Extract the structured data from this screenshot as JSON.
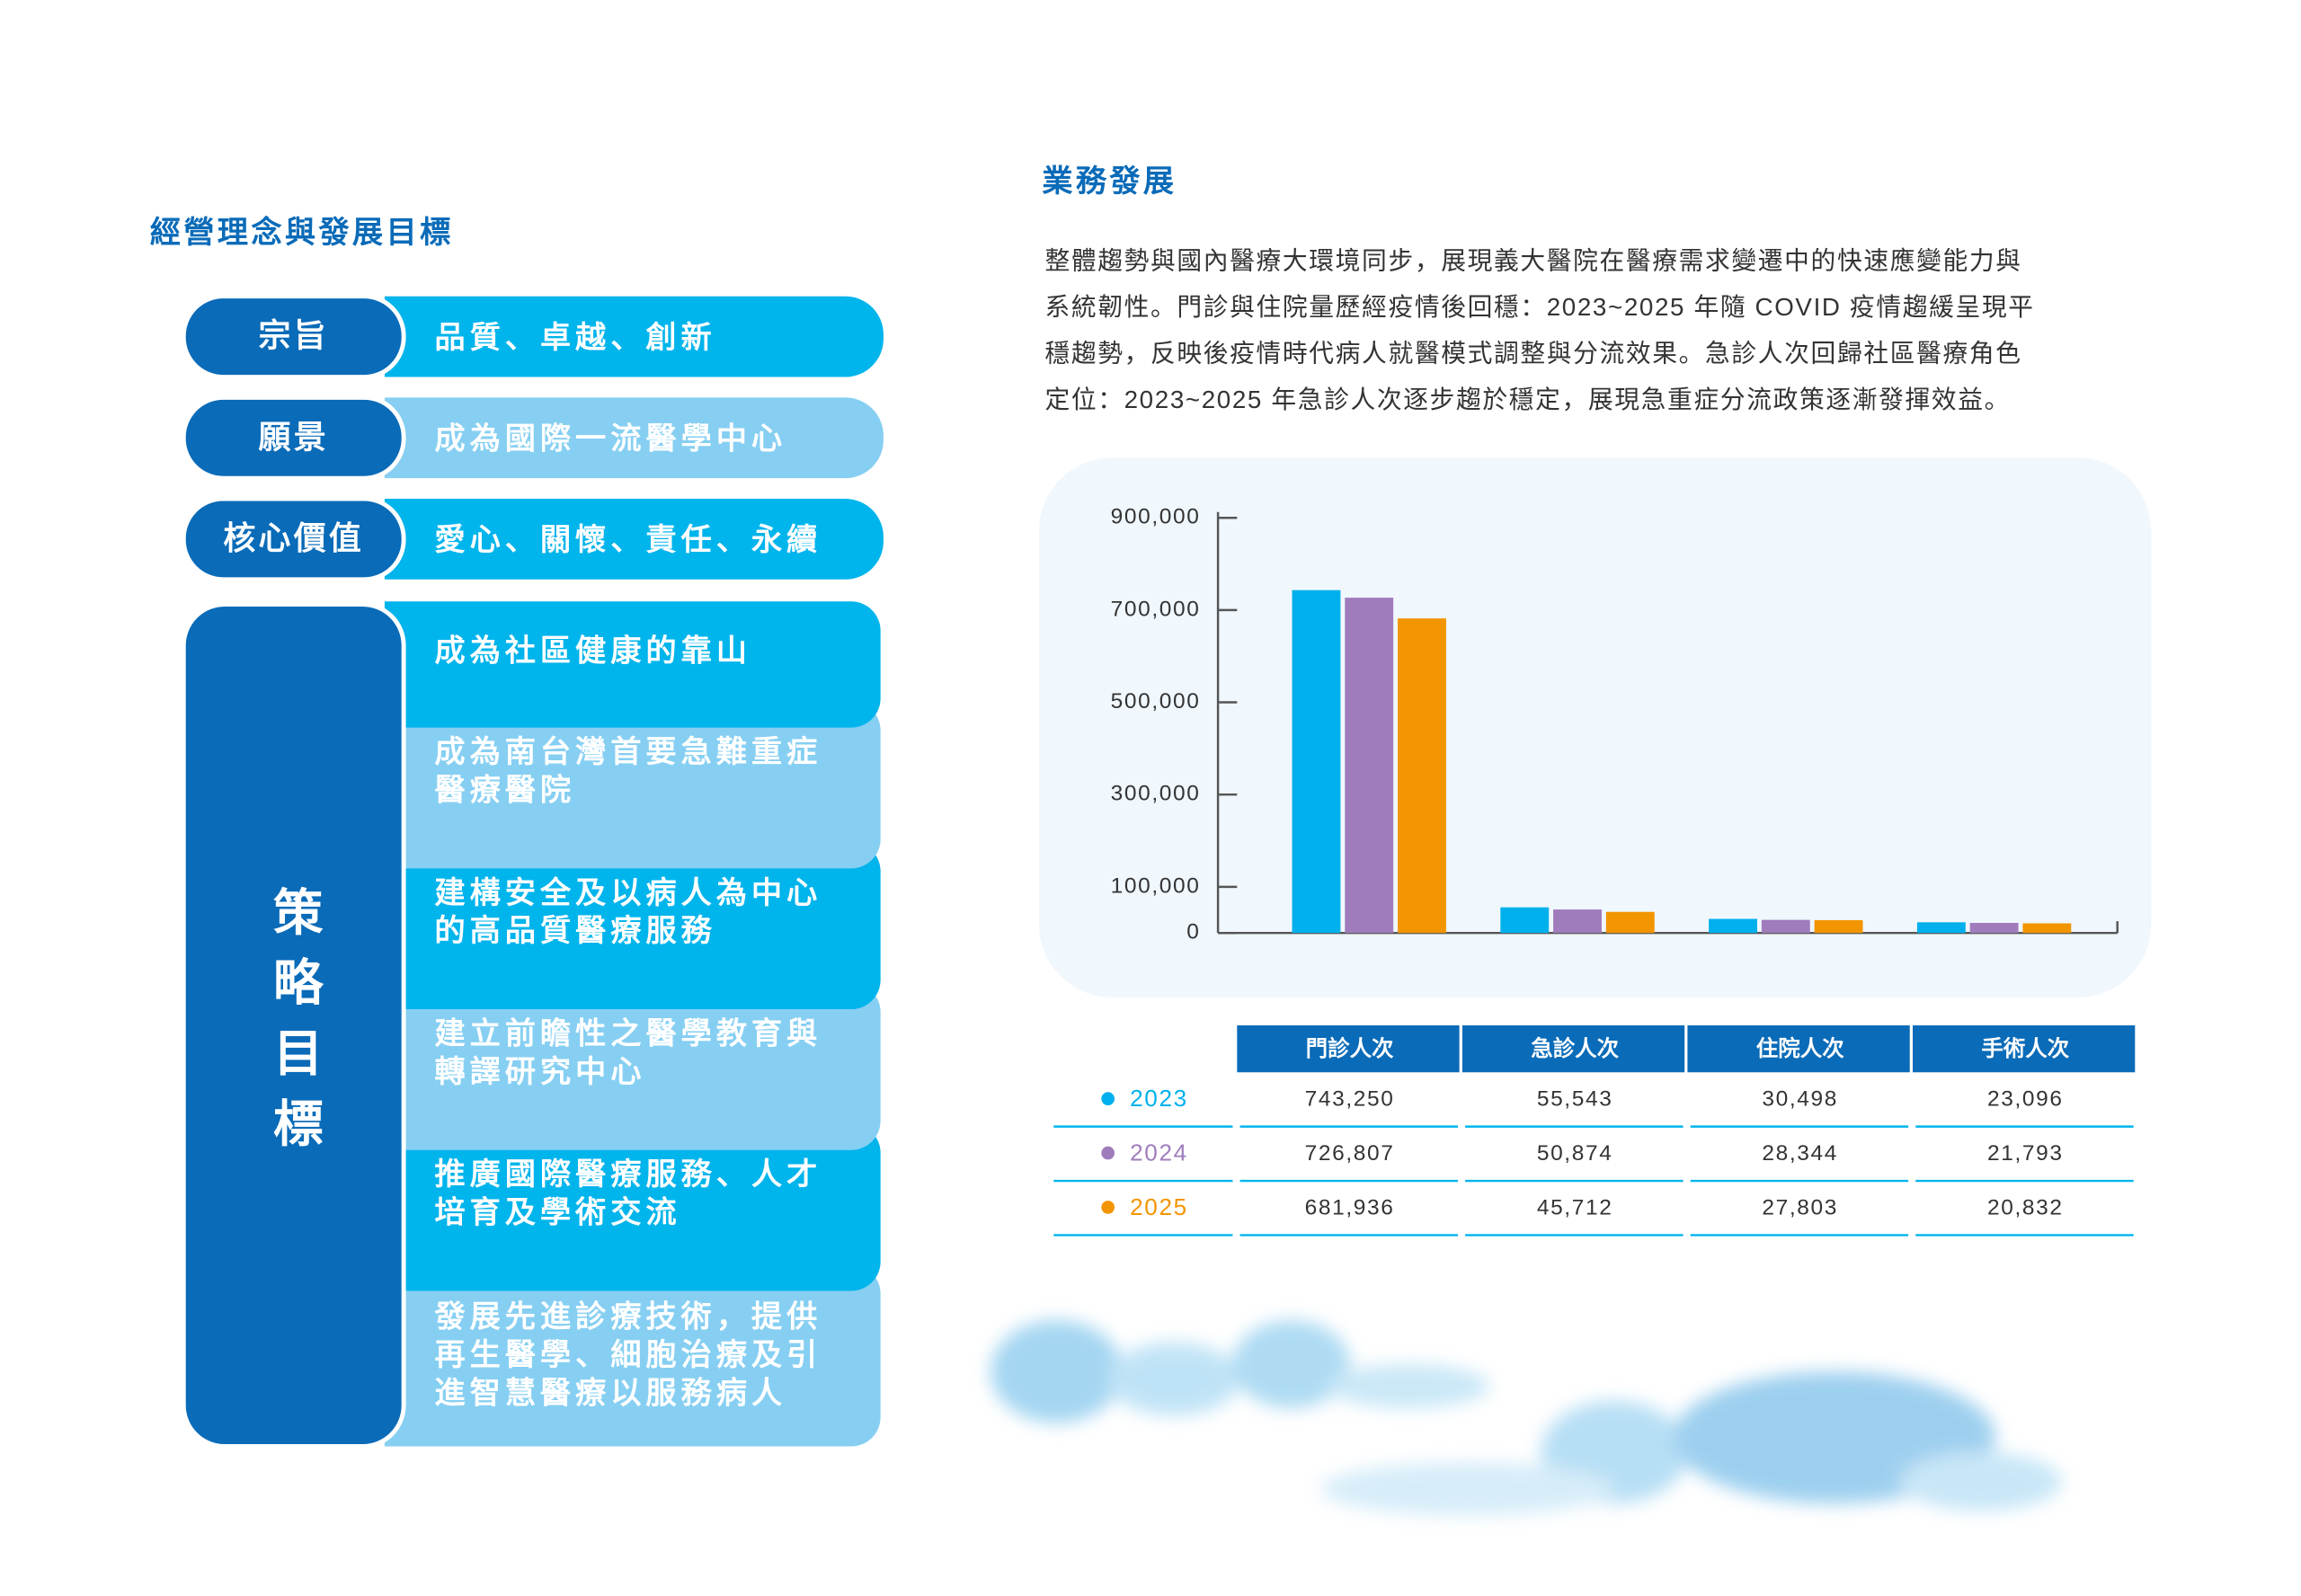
{
  "left": {
    "title": "經營理念與發展目標",
    "rows": [
      {
        "label": "宗旨",
        "text": "品質、卓越、創新"
      },
      {
        "label": "願景",
        "text": "成為國際一流醫學中心"
      },
      {
        "label": "核心價值",
        "text": "愛心、關懷、責任、永續"
      }
    ],
    "goals": {
      "label": "策略目標",
      "items": [
        {
          "lines": [
            "成為社區健康的靠山"
          ]
        },
        {
          "lines": [
            "成為南台灣首要急難重症",
            "醫療醫院"
          ]
        },
        {
          "lines": [
            "建構安全及以病人為中心",
            "的高品質醫療服務"
          ]
        },
        {
          "lines": [
            "建立前瞻性之醫學教育與",
            "轉譯研究中心"
          ]
        },
        {
          "lines": [
            "推廣國際醫療服務、人才",
            "培育及學術交流"
          ]
        },
        {
          "lines": [
            "發展先進診療技術，提供",
            "再生醫學、細胞治療及引",
            "進智慧醫療以服務病人"
          ]
        }
      ]
    }
  },
  "right": {
    "title": "業務發展",
    "paragraph": [
      "整體趨勢與國內醫療大環境同步，展現義大醫院在醫療需求變遷中的快速應變能力與",
      "系統韌性。門診與住院量歷經疫情後回穩：2023~2025 年隨 COVID 疫情趨緩呈現平",
      "穩趨勢，反映後疫情時代病人就醫模式調整與分流效果。急診人次回歸社區醫療角色",
      "定位：2023~2025 年急診人次逐步趨於穩定，展現急重症分流政策逐漸發揮效益。"
    ]
  },
  "chart_data": {
    "type": "bar",
    "categories": [
      "門診人次",
      "急診人次",
      "住院人次",
      "手術人次"
    ],
    "series": [
      {
        "name": "2023",
        "color": "#00b0ec",
        "values": [
          743250,
          55543,
          30498,
          23096
        ],
        "value_labels": [
          "743,250",
          "55,543",
          "30,498",
          "23,096"
        ]
      },
      {
        "name": "2024",
        "color": "#a07cbc",
        "values": [
          726807,
          50874,
          28344,
          21793
        ],
        "value_labels": [
          "726,807",
          "50,874",
          "28,344",
          "21,793"
        ]
      },
      {
        "name": "2025",
        "color": "#f29500",
        "values": [
          681936,
          45712,
          27803,
          20832
        ],
        "value_labels": [
          "681,936",
          "45,712",
          "27,803",
          "20,832"
        ]
      }
    ],
    "ylim": [
      0,
      900000
    ],
    "yticks": [
      0,
      {
        "value": 100000,
        "label": "100,000"
      },
      {
        "value": 300000,
        "label": "300,000"
      },
      {
        "value": 500000,
        "label": "500,000"
      },
      {
        "value": 700000,
        "label": "700,000"
      },
      {
        "value": 900000,
        "label": "900,000"
      }
    ]
  }
}
